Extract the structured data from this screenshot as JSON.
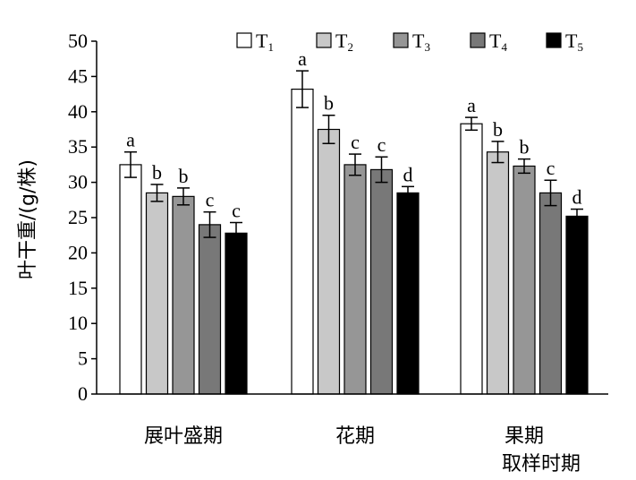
{
  "chart_data": {
    "type": "bar",
    "title": "",
    "ylabel": "叶干重/(g/株)",
    "xlabel": "取样时期",
    "ylim": [
      0,
      50
    ],
    "yticks": [
      0,
      5,
      10,
      15,
      20,
      25,
      30,
      35,
      40,
      45,
      50
    ],
    "categories": [
      "展叶盛期",
      "花期",
      "果期"
    ],
    "legend_position": "top-right",
    "grid": false,
    "series": [
      {
        "name": "T1",
        "legend_base": "T",
        "legend_sub": "1",
        "color": "#ffffff",
        "values": [
          32.5,
          43.2,
          38.3
        ],
        "errors": [
          1.8,
          2.6,
          0.9
        ],
        "labels": [
          "a",
          "a",
          "a"
        ]
      },
      {
        "name": "T2",
        "legend_base": "T",
        "legend_sub": "2",
        "color": "#c8c8c8",
        "values": [
          28.5,
          37.5,
          34.3
        ],
        "errors": [
          1.2,
          2.0,
          1.5
        ],
        "labels": [
          "b",
          "b",
          "b"
        ]
      },
      {
        "name": "T3",
        "legend_base": "T",
        "legend_sub": "3",
        "color": "#969696",
        "values": [
          28.0,
          32.5,
          32.3
        ],
        "errors": [
          1.2,
          1.5,
          1.0
        ],
        "labels": [
          "b",
          "c",
          "b"
        ]
      },
      {
        "name": "T4",
        "legend_base": "T",
        "legend_sub": "4",
        "color": "#787878",
        "values": [
          24.0,
          31.8,
          28.5
        ],
        "errors": [
          1.8,
          1.8,
          1.8
        ],
        "labels": [
          "c",
          "c",
          "c"
        ]
      },
      {
        "name": "T5",
        "legend_base": "T",
        "legend_sub": "5",
        "color": "#000000",
        "values": [
          22.8,
          28.5,
          25.2
        ],
        "errors": [
          1.5,
          0.9,
          1.0
        ],
        "labels": [
          "c",
          "d",
          "d"
        ]
      }
    ]
  }
}
